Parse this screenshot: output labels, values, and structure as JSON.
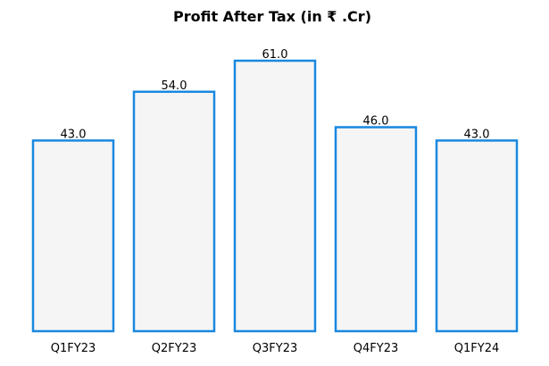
{
  "chart_data": {
    "type": "bar",
    "title": "Profit After Tax (in ₹ .Cr)",
    "xlabel": "",
    "ylabel": "",
    "categories": [
      "Q1FY23",
      "Q2FY23",
      "Q3FY23",
      "Q4FY23",
      "Q1FY24"
    ],
    "values": [
      43.0,
      54.0,
      61.0,
      46.0,
      43.0
    ],
    "data_labels": [
      "43.0",
      "54.0",
      "61.0",
      "46.0",
      "43.0"
    ],
    "ylim": [
      0,
      61.0
    ],
    "grid": false,
    "legend": "none",
    "y_axis_visible": false,
    "colors": {
      "bar_fill": "#f5f5f5",
      "bar_edge": "#1a88df",
      "text": "#000000"
    }
  }
}
